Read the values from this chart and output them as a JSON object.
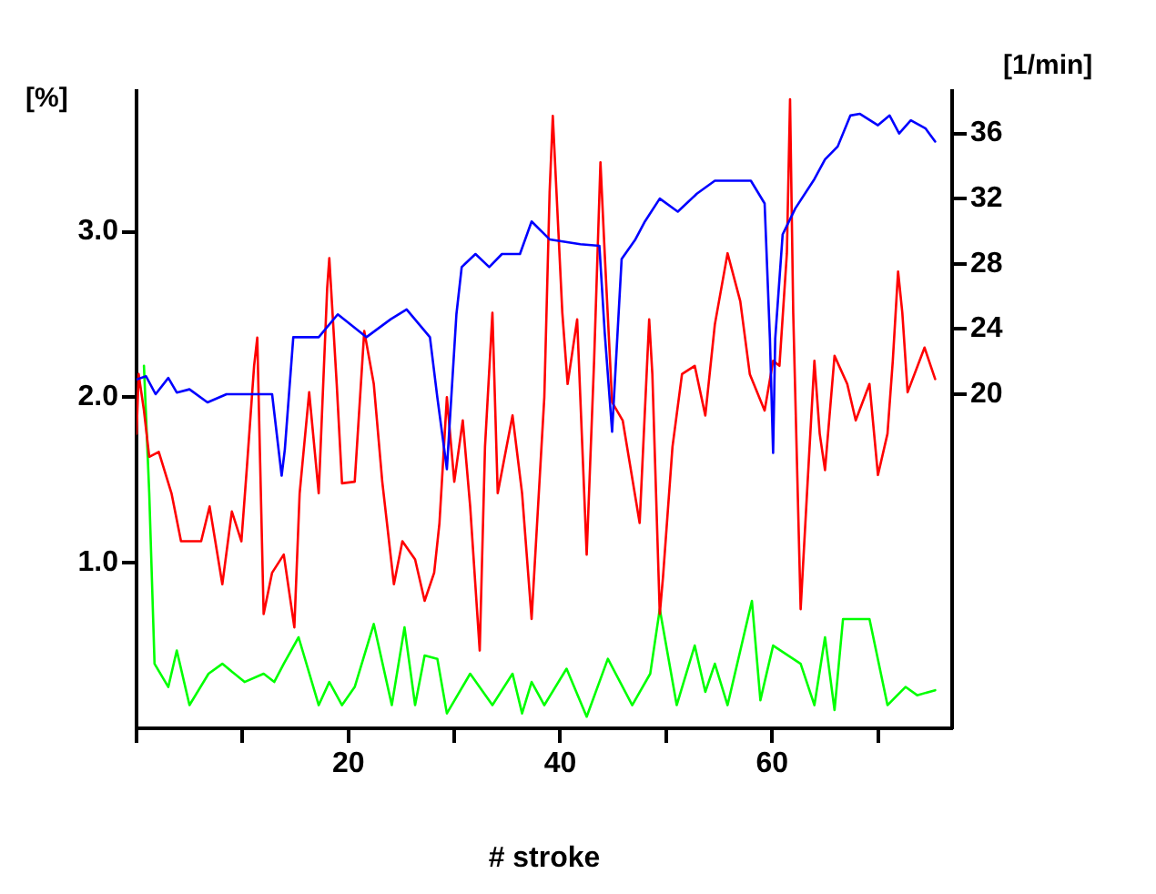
{
  "chart_data": {
    "type": "line",
    "xlabel": "# stroke",
    "ylabel": "[%]",
    "y2label": "[1/min]",
    "xlim": [
      0,
      77
    ],
    "xticks": [
      {
        "value": 0,
        "label": null
      },
      {
        "value": 10,
        "label": null
      },
      20,
      {
        "value": 30,
        "label": null
      },
      40,
      {
        "value": 50,
        "label": null
      },
      60,
      {
        "value": 70,
        "label": null
      }
    ],
    "ylim": [
      0,
      3.85
    ],
    "yticks": [
      {
        "value": 1,
        "label": "1.0"
      },
      {
        "value": 2,
        "label": "2.0"
      },
      {
        "value": 3,
        "label": "3.0"
      }
    ],
    "y2lim": [
      -0.5,
      38.6
    ],
    "y2ticks": [
      20,
      24,
      28,
      32,
      36
    ],
    "grid": false,
    "legend": false,
    "marker": "none",
    "line_style": "solid",
    "series": [
      {
        "color": "#0000ff",
        "axis": "y2",
        "x": [
          0,
          0.9,
          1.8,
          3,
          3.8,
          5,
          6.7,
          8.5,
          12.8,
          13.7,
          14,
          14.8,
          17.2,
          19,
          21.7,
          24,
          25.5,
          27.7,
          28.4,
          29.3,
          30.2,
          30.7,
          32,
          33.3,
          34.5,
          36.2,
          37.3,
          39,
          41.9,
          43.7,
          44.2,
          44.9,
          45.8,
          47.1,
          48,
          49.4,
          51.1,
          52.9,
          54.6,
          58,
          59.3,
          59.8,
          60.1,
          60.3,
          61,
          62.2,
          64,
          65,
          66.2,
          67.4,
          68.3,
          70,
          71.1,
          72,
          73.1,
          74.5,
          75.4
        ],
        "values": [
          20.9,
          21.1,
          20,
          21,
          20.1,
          20.3,
          19.5,
          20,
          20,
          15,
          16.6,
          23.5,
          23.5,
          24.9,
          23.5,
          24.6,
          25.2,
          23.5,
          19.8,
          15.4,
          24.9,
          27.8,
          28.6,
          27.8,
          28.6,
          28.6,
          30.6,
          29.5,
          29.2,
          29.1,
          23.8,
          17.7,
          28.3,
          29.5,
          30.6,
          32,
          31.2,
          32.3,
          33.1,
          33.1,
          31.7,
          23.4,
          16.4,
          23.4,
          29.8,
          31.4,
          33.2,
          34.4,
          35.2,
          37.1,
          37.2,
          36.5,
          37.1,
          36,
          36.8,
          36.3,
          35.5
        ]
      },
      {
        "color": "#ff0000",
        "x": [
          0,
          0.2,
          0.7,
          1.2,
          2.1,
          3.3,
          4.2,
          6.1,
          6.9,
          8.1,
          9,
          9.9,
          10.4,
          11.1,
          11.4,
          12,
          12.8,
          13.9,
          14.9,
          15.4,
          16.3,
          17.2,
          18,
          18.2,
          18.9,
          19.4,
          20.6,
          21.5,
          22.4,
          23.2,
          24.3,
          25.1,
          26.3,
          27.2,
          28.1,
          28.6,
          29.3,
          30,
          30.8,
          31.5,
          32.4,
          32.9,
          33.6,
          34.1,
          35.5,
          36.4,
          37.3,
          38.5,
          39,
          39.3,
          40.2,
          40.7,
          41.6,
          42.5,
          43.2,
          43.8,
          44.2,
          44.9,
          45.9,
          47.5,
          48.4,
          48.7,
          49.4,
          49.7,
          50.6,
          51.5,
          52.7,
          53.7,
          54.6,
          55.8,
          57,
          57.9,
          59.3,
          60.1,
          60.7,
          61.4,
          61.7,
          62,
          62.7,
          63.3,
          64,
          64.5,
          65,
          65.9,
          67.1,
          67.9,
          69.2,
          70,
          70.9,
          71.4,
          71.9,
          72.3,
          72.8,
          74.4,
          75.4
        ],
        "values": [
          1.78,
          2.14,
          1.92,
          1.64,
          1.67,
          1.42,
          1.13,
          1.13,
          1.34,
          0.87,
          1.31,
          1.13,
          1.56,
          2.19,
          2.36,
          0.69,
          0.94,
          1.05,
          0.61,
          1.42,
          2.03,
          1.42,
          2.66,
          2.84,
          2.08,
          1.48,
          1.49,
          2.4,
          2.08,
          1.49,
          0.87,
          1.13,
          1.02,
          0.77,
          0.94,
          1.24,
          2.0,
          1.49,
          1.86,
          1.34,
          0.47,
          1.7,
          2.51,
          1.42,
          1.89,
          1.42,
          0.66,
          2.0,
          3.24,
          3.7,
          2.51,
          2.08,
          2.47,
          1.05,
          2.22,
          3.42,
          2.87,
          1.97,
          1.86,
          1.24,
          2.47,
          2.14,
          0.69,
          0.91,
          1.7,
          2.14,
          2.19,
          1.89,
          2.44,
          2.87,
          2.58,
          2.14,
          1.92,
          2.22,
          2.19,
          2.87,
          3.8,
          2.51,
          0.72,
          1.42,
          2.22,
          1.78,
          1.56,
          2.25,
          2.08,
          1.86,
          2.08,
          1.53,
          1.78,
          2.22,
          2.76,
          2.51,
          2.03,
          2.3,
          2.11
        ]
      },
      {
        "color": "#00ff00",
        "x": [
          0.7,
          1.2,
          1.7,
          3,
          3.8,
          5,
          6.8,
          8.1,
          10.2,
          12,
          13,
          13.9,
          15.3,
          17.2,
          18.2,
          19.4,
          20.6,
          22.4,
          24.1,
          25.3,
          26.3,
          27.2,
          28.4,
          29.3,
          31.5,
          33.6,
          35.5,
          36.4,
          37.3,
          38.5,
          40.6,
          42.5,
          44.5,
          46.8,
          48.5,
          49.4,
          51,
          52.7,
          53.7,
          54.6,
          55.8,
          58.1,
          58.9,
          60.1,
          62.7,
          64,
          65,
          65.9,
          66.7,
          69.2,
          70.9,
          72.6,
          73.7,
          75.4
        ],
        "values": [
          2.19,
          1.42,
          0.39,
          0.25,
          0.47,
          0.14,
          0.33,
          0.39,
          0.28,
          0.33,
          0.28,
          0.39,
          0.55,
          0.14,
          0.28,
          0.14,
          0.25,
          0.63,
          0.14,
          0.61,
          0.14,
          0.44,
          0.42,
          0.09,
          0.33,
          0.14,
          0.33,
          0.09,
          0.28,
          0.14,
          0.36,
          0.07,
          0.42,
          0.14,
          0.33,
          0.72,
          0.14,
          0.5,
          0.22,
          0.39,
          0.14,
          0.77,
          0.17,
          0.5,
          0.39,
          0.14,
          0.55,
          0.11,
          0.66,
          0.66,
          0.14,
          0.25,
          0.2,
          0.23
        ]
      }
    ]
  }
}
